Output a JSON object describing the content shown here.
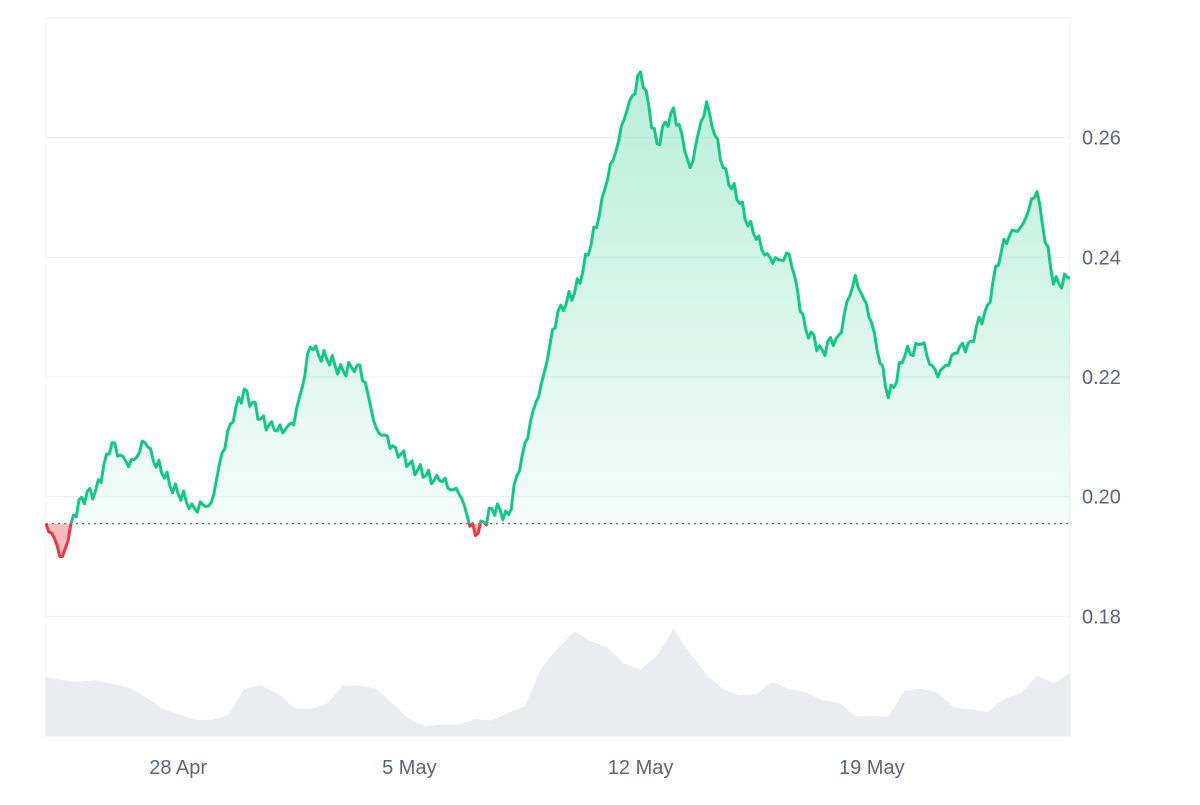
{
  "chart_data": {
    "type": "area",
    "x_tick_labels": [
      "28 Apr",
      "5 May",
      "12 May",
      "19 May"
    ],
    "y_tick_labels": [
      "0.18",
      "0.20",
      "0.22",
      "0.24",
      "0.26"
    ],
    "ylim": [
      0.16,
      0.28
    ],
    "xlim": [
      "2025-04-24",
      "2025-05-25"
    ],
    "baseline": {
      "value": 0.1955,
      "style": "dotted"
    },
    "grid": true,
    "colors": {
      "up": "#16c784",
      "down": "#ea3943",
      "volume": "#eaecef",
      "grid": "#eff2f5",
      "axis_text": "#58667e"
    },
    "series": [
      {
        "values_note": "price",
        "x": [
          "2025-04-24",
          "2025-04-24T12",
          "2025-04-25",
          "2025-04-25T12",
          "2025-04-26",
          "2025-04-26T12",
          "2025-04-27",
          "2025-04-27T12",
          "2025-04-28",
          "2025-04-28T12",
          "2025-04-29",
          "2025-04-29T12",
          "2025-04-30",
          "2025-04-30T12",
          "2025-05-01",
          "2025-05-01T12",
          "2025-05-02",
          "2025-05-02T12",
          "2025-05-03",
          "2025-05-03T12",
          "2025-05-04",
          "2025-05-04T12",
          "2025-05-05",
          "2025-05-05T12",
          "2025-05-06",
          "2025-05-06T12",
          "2025-05-07",
          "2025-05-07T12",
          "2025-05-08",
          "2025-05-08T12",
          "2025-05-09",
          "2025-05-09T12",
          "2025-05-10",
          "2025-05-10T12",
          "2025-05-11",
          "2025-05-11T12",
          "2025-05-12",
          "2025-05-12T12",
          "2025-05-13",
          "2025-05-13T12",
          "2025-05-14",
          "2025-05-14T12",
          "2025-05-15",
          "2025-05-15T12",
          "2025-05-16",
          "2025-05-16T12",
          "2025-05-17",
          "2025-05-17T12",
          "2025-05-18",
          "2025-05-18T12",
          "2025-05-19",
          "2025-05-19T12",
          "2025-05-20",
          "2025-05-20T12",
          "2025-05-21",
          "2025-05-21T12",
          "2025-05-22",
          "2025-05-22T12",
          "2025-05-23",
          "2025-05-23T12",
          "2025-05-24",
          "2025-05-24T12",
          "2025-05-25"
        ],
        "values": [
          0.1955,
          0.19,
          0.1995,
          0.201,
          0.209,
          0.205,
          0.209,
          0.204,
          0.2005,
          0.198,
          0.199,
          0.211,
          0.218,
          0.213,
          0.211,
          0.212,
          0.225,
          0.223,
          0.221,
          0.222,
          0.2115,
          0.2085,
          0.2055,
          0.2035,
          0.2025,
          0.2005,
          0.1935,
          0.198,
          0.197,
          0.209,
          0.219,
          0.231,
          0.234,
          0.242,
          0.253,
          0.263,
          0.271,
          0.259,
          0.265,
          0.255,
          0.266,
          0.255,
          0.249,
          0.243,
          0.239,
          0.2405,
          0.228,
          0.2245,
          0.227,
          0.237,
          0.229,
          0.2165,
          0.2235,
          0.2255,
          0.22,
          0.224,
          0.226,
          0.232,
          0.243,
          0.245,
          0.251,
          0.2355,
          0.2365
        ]
      }
    ],
    "volume": [
      0.55,
      0.52,
      0.5,
      0.52,
      0.48,
      0.45,
      0.35,
      0.25,
      0.18,
      0.14,
      0.12,
      0.18,
      0.42,
      0.48,
      0.38,
      0.26,
      0.22,
      0.3,
      0.45,
      0.48,
      0.42,
      0.3,
      0.12,
      0.08,
      0.07,
      0.1,
      0.12,
      0.14,
      0.18,
      0.28,
      0.62,
      0.85,
      0.98,
      0.92,
      0.82,
      0.7,
      0.6,
      0.78,
      1.0,
      0.8,
      0.55,
      0.45,
      0.35,
      0.4,
      0.48,
      0.45,
      0.38,
      0.34,
      0.28,
      0.18,
      0.15,
      0.18,
      0.4,
      0.45,
      0.38,
      0.26,
      0.22,
      0.22,
      0.32,
      0.4,
      0.55,
      0.5,
      0.58
    ]
  }
}
